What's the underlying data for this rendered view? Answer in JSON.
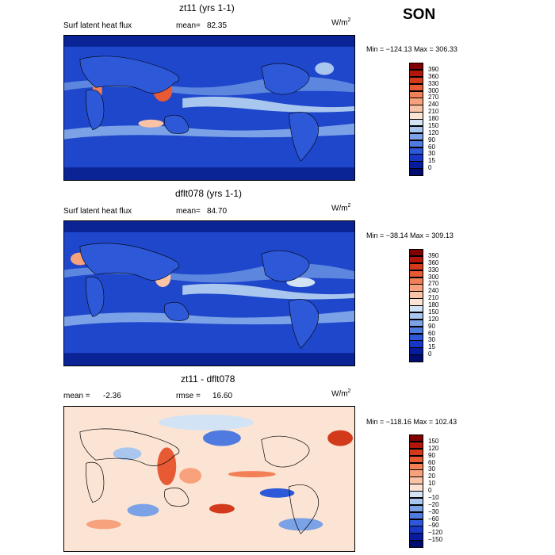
{
  "season": "SON",
  "panels": [
    {
      "title": "zt11 (yrs 1-1)",
      "left_label": "Surf latent heat flux",
      "stat_label": "mean=",
      "stat_value": "82.35",
      "stat2_label": "",
      "stat2_value": "",
      "units_base": "W/m",
      "units_exp": "2",
      "minmax": "Min = −124.13 Max = 306.33",
      "palette": "absolute",
      "colorbar_levels": [
        "390",
        "360",
        "330",
        "300",
        "270",
        "240",
        "210",
        "180",
        "150",
        "120",
        "90",
        "60",
        "30",
        "15",
        "0"
      ]
    },
    {
      "title": "dflt078 (yrs 1-1)",
      "left_label": "Surf latent heat flux",
      "stat_label": "mean=",
      "stat_value": "84.70",
      "stat2_label": "",
      "stat2_value": "",
      "units_base": "W/m",
      "units_exp": "2",
      "minmax": "Min = −38.14 Max = 309.13",
      "palette": "absolute",
      "colorbar_levels": [
        "390",
        "360",
        "330",
        "300",
        "270",
        "240",
        "210",
        "180",
        "150",
        "120",
        "90",
        "60",
        "30",
        "15",
        "0"
      ]
    },
    {
      "title": "zt11 - dflt078",
      "left_label": "",
      "stat_label": "mean =",
      "stat_value": "-2.36",
      "stat2_label": "rmse =",
      "stat2_value": "16.60",
      "units_base": "W/m",
      "units_exp": "2",
      "minmax": "Min = −118.16 Max = 102.43",
      "palette": "difference",
      "colorbar_levels": [
        "150",
        "120",
        "90",
        "60",
        "30",
        "20",
        "10",
        "0",
        "−10",
        "−20",
        "−30",
        "−60",
        "−90",
        "−120",
        "−150"
      ]
    }
  ],
  "colors": {
    "absolute": [
      "#7f0000",
      "#b2160a",
      "#d33a1c",
      "#e85a34",
      "#f37f56",
      "#f8a17d",
      "#fbc3a6",
      "#fbe4d3",
      "#d2e3f5",
      "#a9c6ee",
      "#7ba2e6",
      "#4f7be0",
      "#2d58d8",
      "#1737c4",
      "#071c9c",
      "#000c6e"
    ],
    "difference": [
      "#7f0000",
      "#b2160a",
      "#d33a1c",
      "#e85a34",
      "#f37f56",
      "#f8a17d",
      "#fbc3a6",
      "#fbe4d3",
      "#d2e3f5",
      "#a9c6ee",
      "#7ba2e6",
      "#4f7be0",
      "#2d58d8",
      "#1737c4",
      "#071c9c",
      "#000c6e"
    ]
  }
}
